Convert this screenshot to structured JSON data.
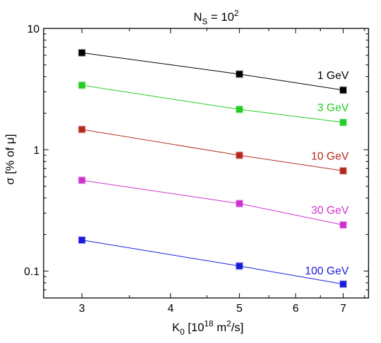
{
  "chart_data": {
    "type": "line",
    "title_main": "N",
    "title_sub": "S",
    "title_eq": " = 10",
    "title_sup": "2",
    "xlabel_main": "K",
    "xlabel_sub": "0",
    "xlabel_mid": " [10",
    "xlabel_sup": "18",
    "xlabel_unit": " m",
    "xlabel_unit_sup": "2",
    "xlabel_end": "/s]",
    "ylabel": "σ [% of μ]",
    "xscale": "log",
    "yscale": "log",
    "xlim": [
      2.65,
      7.6
    ],
    "ylim": [
      0.06,
      10
    ],
    "x_ticks": [
      {
        "value": 3,
        "label": "3"
      },
      {
        "value": 4,
        "label": "4"
      },
      {
        "value": 5,
        "label": "5"
      },
      {
        "value": 6,
        "label": "6"
      },
      {
        "value": 7,
        "label": "7"
      }
    ],
    "y_ticks": [
      {
        "value": 0.1,
        "label": "0.1"
      },
      {
        "value": 1,
        "label": "1"
      },
      {
        "value": 10,
        "label": "10"
      }
    ],
    "grid": false,
    "x": [
      3,
      5,
      7
    ],
    "series": [
      {
        "name": "1 GeV",
        "values": [
          6.3,
          4.2,
          3.1
        ],
        "color": "#000000"
      },
      {
        "name": "3 GeV",
        "values": [
          3.4,
          2.15,
          1.68
        ],
        "color": "#22cc22"
      },
      {
        "name": "10 GeV",
        "values": [
          1.47,
          0.9,
          0.67
        ],
        "color": "#b52a1a"
      },
      {
        "name": "30 GeV",
        "values": [
          0.56,
          0.36,
          0.24
        ],
        "color": "#cc33cc"
      },
      {
        "name": "100 GeV",
        "values": [
          0.18,
          0.11,
          0.078
        ],
        "color": "#1a1adc"
      }
    ]
  }
}
